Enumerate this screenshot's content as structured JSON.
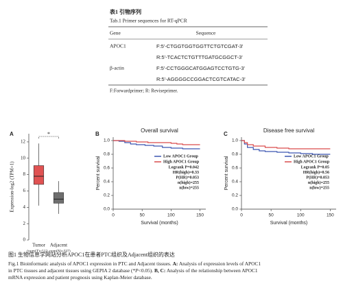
{
  "table": {
    "label": "表1 引物序列",
    "caption": "Tab.1 Primer sequences for RT-qPCR",
    "columns": [
      "Gene",
      "Sequence"
    ],
    "rows": [
      {
        "gene": "APOC1",
        "sequences": [
          "F:5'-CTGGTGGTGGTTCTGTCGAT-3'",
          "R:5'-TCACTCTGTTTGATGCGGCT-3'"
        ]
      },
      {
        "gene": "β-actin",
        "sequences": [
          "F:5'-CCTGGGCATGGAGTCCTGTG-3'",
          "R:5'-AGGGGCCGGACTCGTCATAC-3'"
        ]
      }
    ],
    "note": "F:Forwardprimer; R: Reviseprimer."
  },
  "figure": {
    "panels": [
      {
        "label": "A",
        "type": "box",
        "y_label": "Expression-log2 (TPM+1)",
        "categories": [
          "Tumor",
          "Adjacent"
        ],
        "sample_note": "(num(T)=512; num(N)=337)",
        "colors": [
          "#e05252",
          "#6e6e6e"
        ],
        "significance": "*",
        "ylim": [
          0,
          13
        ],
        "yticks": [
          0,
          2,
          4,
          6,
          8,
          10,
          12
        ],
        "boxes": [
          {
            "whisker_low": 4.2,
            "q1": 6.8,
            "median": 7.8,
            "q3": 9.1,
            "whisker_high": 11.8
          },
          {
            "whisker_low": 3.2,
            "q1": 4.5,
            "median": 5.0,
            "q3": 5.8,
            "whisker_high": 7.2
          }
        ]
      },
      {
        "label": "B",
        "type": "line",
        "title": "Overall survival",
        "x_label": "Survival (months)",
        "y_label": "Percent survival",
        "xlim": [
          0,
          160
        ],
        "xticks": [
          0,
          50,
          100,
          150
        ],
        "ylim": [
          0,
          1.05
        ],
        "yticks": [
          {
            "value": 0,
            "label": "0.0"
          },
          {
            "value": 0.2,
            "label": "0.2"
          },
          {
            "value": 0.4,
            "label": "0.4"
          },
          {
            "value": 0.6,
            "label": "0.6"
          },
          {
            "value": 0.8,
            "label": "0.8"
          },
          {
            "value": 1,
            "label": "1.0"
          }
        ],
        "series": [
          {
            "name": "Low APOC1 Group",
            "color": "#3a55b0",
            "x": [
              0,
              10,
              20,
              30,
              40,
              55,
              70,
              85,
              100,
              120,
              140,
              150
            ],
            "values": [
              1,
              0.99,
              0.97,
              0.95,
              0.94,
              0.93,
              0.92,
              0.9,
              0.89,
              0.88,
              0.88,
              0.88
            ]
          },
          {
            "name": "High APOC1 Group",
            "color": "#d94a4a",
            "x": [
              0,
              20,
              40,
              60,
              80,
              100,
              110,
              120,
              150
            ],
            "values": [
              1,
              0.99,
              0.98,
              0.97,
              0.97,
              0.96,
              0.95,
              0.94,
              0.94
            ]
          }
        ],
        "stats": [
          "Logrank P=0.042",
          "HR(high)=0.33",
          "P(HR)=0.053",
          "n(high)=255",
          "n(low)=255"
        ]
      },
      {
        "label": "C",
        "type": "line",
        "title": "Disease free survival",
        "x_label": "Survival (months)",
        "y_label": "Percent survival",
        "xlim": [
          0,
          160
        ],
        "xticks": [
          0,
          50,
          100,
          150
        ],
        "ylim": [
          0,
          1.05
        ],
        "yticks": [
          {
            "value": 0,
            "label": "0.0"
          },
          {
            "value": 0.2,
            "label": "0.2"
          },
          {
            "value": 0.4,
            "label": "0.4"
          },
          {
            "value": 0.6,
            "label": "0.6"
          },
          {
            "value": 0.8,
            "label": "0.8"
          },
          {
            "value": 1,
            "label": "1.0"
          }
        ],
        "series": [
          {
            "name": "Low APOC1 Group",
            "color": "#3a55b0",
            "x": [
              0,
              5,
              10,
              20,
              30,
              40,
              60,
              80,
              100,
              120,
              150
            ],
            "values": [
              1,
              0.95,
              0.9,
              0.87,
              0.85,
              0.84,
              0.83,
              0.82,
              0.81,
              0.8,
              0.8
            ]
          },
          {
            "name": "High APOC1 Group",
            "color": "#d94a4a",
            "x": [
              0,
              5,
              10,
              20,
              40,
              60,
              80,
              100,
              120,
              150
            ],
            "values": [
              1,
              0.97,
              0.94,
              0.92,
              0.9,
              0.89,
              0.88,
              0.88,
              0.88,
              0.88
            ]
          }
        ],
        "stats": [
          "Logrank P=0.05",
          "HR(high)=0.56",
          "P(HR)=0.053",
          "n(high)=255",
          "n(low)=255"
        ]
      }
    ],
    "caption_cn": "图1 生物信息学网站分析APOC1在患者PTC组织及Adjacent组织的表达",
    "caption_en": [
      [
        {
          "text": "Fig.1  Bioinformatic analysis of APOC1 expression in PTC and Adjacent tissues. "
        },
        {
          "text": "A:",
          "bold": true
        },
        {
          "text": " Analysis of expression levels of APOC1"
        }
      ],
      [
        {
          "text": "in PTC tissues and adjacent tissues using GEPIA 2 database (*"
        },
        {
          "text": "P",
          "italic": true
        },
        {
          "text": "<0.05). "
        },
        {
          "text": "B, C:",
          "bold": true
        },
        {
          "text": " Analysis of the relationship between APOC1"
        }
      ],
      [
        {
          "text": "mRNA expression and patient prognosis using Kaplan-Meier database."
        }
      ]
    ]
  }
}
